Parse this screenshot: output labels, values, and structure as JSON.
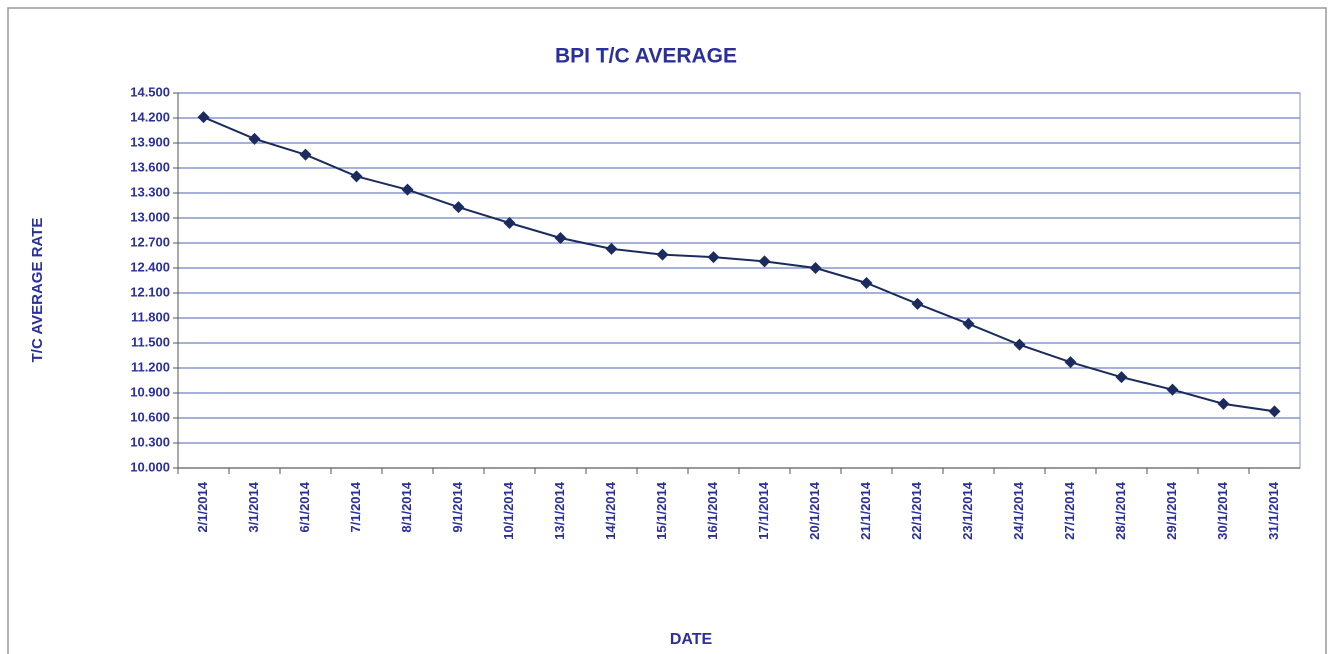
{
  "chart_data": {
    "type": "line",
    "title": "BPI T/C AVERAGE",
    "x_label": "DATE",
    "y_label": "T/C AVERAGE RATE",
    "categories": [
      "2/1/2014",
      "3/1/2014",
      "6/1/2014",
      "7/1/2014",
      "8/1/2014",
      "9/1/2014",
      "10/1/2014",
      "13/1/2014",
      "14/1/2014",
      "15/1/2014",
      "16/1/2014",
      "17/1/2014",
      "20/1/2014",
      "21/1/2014",
      "22/1/2014",
      "23/1/2014",
      "24/1/2014",
      "27/1/2014",
      "28/1/2014",
      "29/1/2014",
      "30/1/2014",
      "31/1/2014"
    ],
    "values": [
      14210,
      13950,
      13760,
      13500,
      13340,
      13130,
      12940,
      12760,
      12630,
      12560,
      12530,
      12480,
      12400,
      12220,
      11970,
      11730,
      11480,
      11270,
      11090,
      10940,
      10770,
      10680
    ],
    "color": "#1b2b5e",
    "ylim": [
      10000,
      14500
    ],
    "yticks": [
      {
        "value": 10000,
        "label": "10.000"
      },
      {
        "value": 10300,
        "label": "10.300"
      },
      {
        "value": 10600,
        "label": "10.600"
      },
      {
        "value": 10900,
        "label": "10.900"
      },
      {
        "value": 11200,
        "label": "11.200"
      },
      {
        "value": 11500,
        "label": "11.500"
      },
      {
        "value": 11800,
        "label": "11.800"
      },
      {
        "value": 12100,
        "label": "12.100"
      },
      {
        "value": 12400,
        "label": "12.400"
      },
      {
        "value": 12700,
        "label": "12.700"
      },
      {
        "value": 13000,
        "label": "13.000"
      },
      {
        "value": 13300,
        "label": "13.300"
      },
      {
        "value": 13600,
        "label": "13.600"
      },
      {
        "value": 13900,
        "label": "13.900"
      },
      {
        "value": 14200,
        "label": "14.200"
      },
      {
        "value": 14500,
        "label": "14.500"
      }
    ],
    "grid": true
  }
}
